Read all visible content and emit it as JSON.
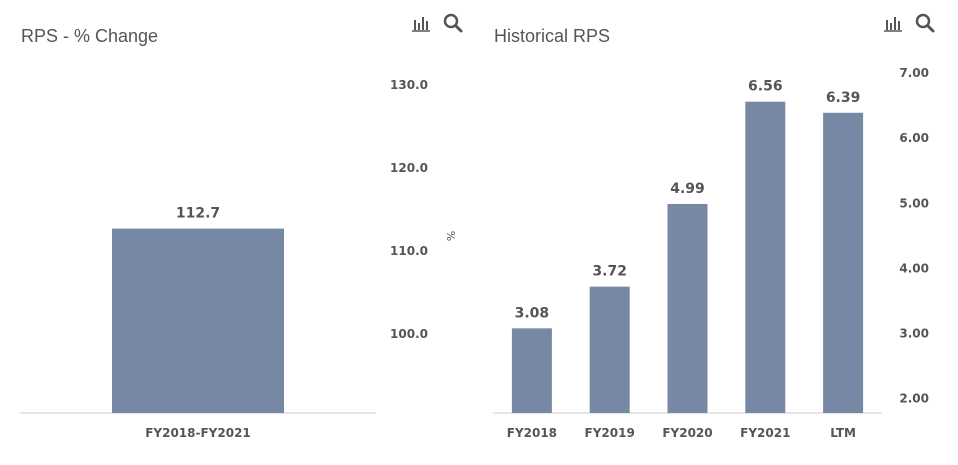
{
  "panels": [
    {
      "title": "RPS - % Change",
      "icons": [
        "bar-chart-icon",
        "search-icon"
      ]
    },
    {
      "title": "Historical RPS",
      "icons": [
        "bar-chart-icon",
        "search-icon"
      ]
    }
  ],
  "colors": {
    "bar": "#7788a5",
    "axis": "#cccccc",
    "text": "#555555"
  },
  "chart_data": [
    {
      "type": "bar",
      "title": "RPS - % Change",
      "categories": [
        "FY2018-FY2021"
      ],
      "values": [
        112.7
      ],
      "value_labels": [
        "112.7"
      ],
      "yaxis_ticks": [
        "100.0",
        "110.0",
        "120.0",
        "130.0"
      ],
      "ylim": [
        90.5,
        133
      ],
      "yaxis_unit": "%",
      "yaxis_side": "right"
    },
    {
      "type": "bar",
      "title": "Historical RPS",
      "categories": [
        "FY2018",
        "FY2019",
        "FY2020",
        "FY2021",
        "LTM"
      ],
      "values": [
        3.08,
        3.72,
        4.99,
        6.56,
        6.39
      ],
      "value_labels": [
        "3.08",
        "3.72",
        "4.99",
        "6.56",
        "6.39"
      ],
      "yaxis_ticks": [
        "2.00",
        "3.00",
        "4.00",
        "5.00",
        "6.00",
        "7.00"
      ],
      "ylim": [
        1.78,
        7.2
      ],
      "yaxis_side": "right"
    }
  ]
}
